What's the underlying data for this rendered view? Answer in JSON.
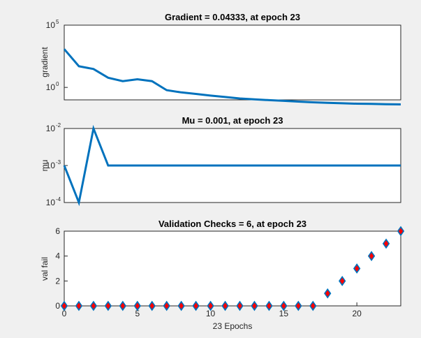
{
  "chart_data": [
    {
      "type": "line",
      "title": "Gradient = 0.04333, at epoch 23",
      "ylabel": "gradient",
      "yscale": "log",
      "xlim": [
        0,
        23
      ],
      "ylim_exp": [
        -1,
        5
      ],
      "y_tick_labels": [
        {
          "exp": 5,
          "text": "10",
          "sup": "5"
        },
        {
          "exp": 0,
          "text": "10",
          "sup": "0"
        }
      ],
      "line_color": "#0072bd",
      "series": [
        {
          "x": [
            0,
            1,
            2,
            3,
            4,
            5,
            6,
            7,
            8,
            9,
            10,
            11,
            12,
            13,
            14,
            15,
            16,
            17,
            18,
            19,
            20,
            21,
            22,
            23
          ],
          "values": [
            1200,
            50,
            30,
            6,
            3.2,
            4.5,
            3.2,
            0.6,
            0.4,
            0.3,
            0.22,
            0.17,
            0.13,
            0.11,
            0.095,
            0.083,
            0.072,
            0.064,
            0.058,
            0.053,
            0.049,
            0.047,
            0.045,
            0.04333
          ]
        }
      ]
    },
    {
      "type": "line",
      "title": "Mu = 0.001, at epoch 23",
      "ylabel": "mu",
      "yscale": "log",
      "xlim": [
        0,
        23
      ],
      "ylim_exp": [
        -4,
        -2
      ],
      "y_tick_labels": [
        {
          "exp": -2,
          "text": "10",
          "sup": "-2"
        },
        {
          "exp": -3,
          "text": "10",
          "sup": "-3"
        },
        {
          "exp": -4,
          "text": "10",
          "sup": "-4"
        }
      ],
      "line_color": "#0072bd",
      "series": [
        {
          "x": [
            0,
            1,
            2,
            3,
            4,
            5,
            6,
            7,
            8,
            9,
            10,
            11,
            12,
            13,
            14,
            15,
            16,
            17,
            18,
            19,
            20,
            21,
            22,
            23
          ],
          "values": [
            0.001,
            0.0001,
            0.01,
            0.001,
            0.001,
            0.001,
            0.001,
            0.001,
            0.001,
            0.001,
            0.001,
            0.001,
            0.001,
            0.001,
            0.001,
            0.001,
            0.001,
            0.001,
            0.001,
            0.001,
            0.001,
            0.001,
            0.001,
            0.001
          ]
        }
      ]
    },
    {
      "type": "scatter",
      "title": "Validation Checks = 6, at epoch 23",
      "ylabel": "val fail",
      "xlabel": "23 Epochs",
      "xlim": [
        0,
        23
      ],
      "ylim": [
        0,
        6
      ],
      "y_ticks": [
        0,
        2,
        4,
        6
      ],
      "x_ticks": [
        0,
        5,
        10,
        15,
        20
      ],
      "marker": "diamond",
      "marker_fill": "#ff0000",
      "marker_edge": "#0072bd",
      "series": [
        {
          "x": [
            0,
            1,
            2,
            3,
            4,
            5,
            6,
            7,
            8,
            9,
            10,
            11,
            12,
            13,
            14,
            15,
            16,
            17,
            18,
            19,
            20,
            21,
            22,
            23
          ],
          "values": [
            0,
            0,
            0,
            0,
            0,
            0,
            0,
            0,
            0,
            0,
            0,
            0,
            0,
            0,
            0,
            0,
            0,
            0,
            1,
            2,
            3,
            4,
            5,
            6
          ]
        }
      ]
    }
  ]
}
